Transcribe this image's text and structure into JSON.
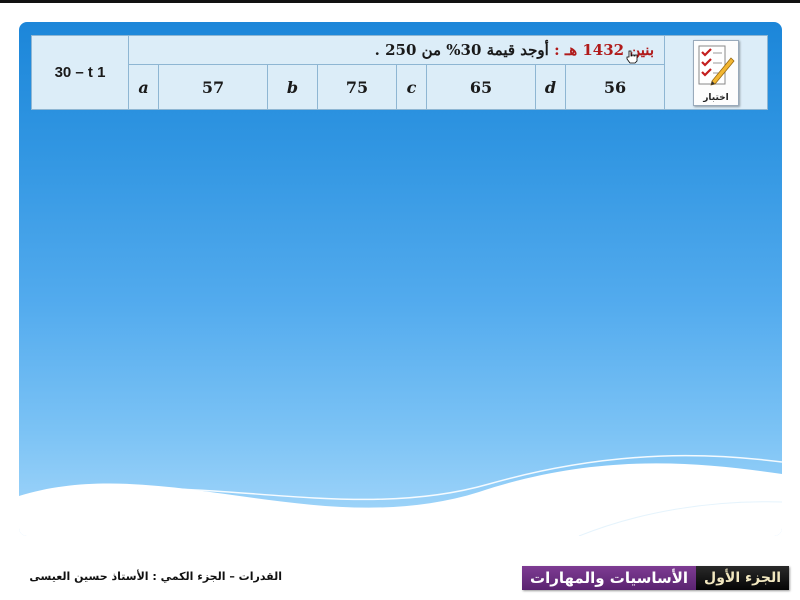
{
  "question": {
    "source": "بنين 1432 هـ :",
    "text": "أوجد قيمة  30% من 250 ."
  },
  "code": "30 – t 1",
  "icon_label": "اختبار",
  "options": [
    {
      "letter": "a",
      "value": "57"
    },
    {
      "letter": "b",
      "value": "75"
    },
    {
      "letter": "c",
      "value": "65"
    },
    {
      "letter": "d",
      "value": "56"
    }
  ],
  "footer": {
    "credit": "القدرات – الجزء الكمي : الأستاذ حسين العيسى",
    "part": "الجزء الأول",
    "subtitle": "الأساسيات والمهارات"
  },
  "colors": {
    "panel_top": "#1c86d9",
    "panel_bottom": "#a7d8fa",
    "table_bg": "#dcedf8",
    "source_red": "#b01a1a",
    "badge_purple": "#5a2370",
    "badge_black": "#050505"
  },
  "icons": [
    "checklist-pencil-icon",
    "hand-cursor-icon"
  ]
}
